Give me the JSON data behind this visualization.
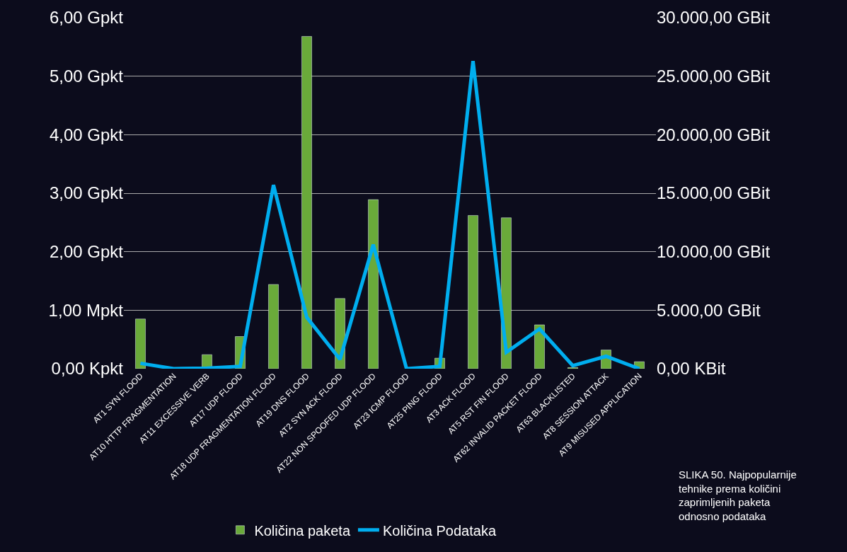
{
  "chart_data": {
    "type": "bar",
    "categories": [
      "AT1 SYN FLOOD",
      "AT10 HTTP FRAGMENTATION",
      "AT11 EXCESSIVE VERB",
      "AT17 UDP FLOOD",
      "AT18 UDP FRAGMENTATION FLOOD",
      "AT19 DNS FLOOD",
      "AT2 SYN ACK FLOOD",
      "AT22 NON SPOOFED UDP FLOOD",
      "AT23 ICMP FLOOD",
      "AT25 PING FLOOD",
      "AT3 ACK FLOOD",
      "AT5 RST FIN FLOOD",
      "AT62 INVALID PACKET FLOOD",
      "AT63 BLACKLISTED",
      "AT8 SESSION ATTACK",
      "AT9 MISUSED APPLICATION"
    ],
    "series": [
      {
        "name": "Količina paketa",
        "color": "#6aaa3a",
        "values": [
          0.85,
          null,
          0.24,
          0.55,
          1.44,
          5.68,
          1.2,
          2.89,
          null,
          0.18,
          2.62,
          2.58,
          0.75,
          0.02,
          0.32,
          0.12
        ]
      },
      {
        "name": "Količina Podataka",
        "type": "line",
        "axis": "y2",
        "color": "#00aeef",
        "values": [
          460,
          0,
          50,
          200,
          15700,
          4400,
          800,
          10600,
          0,
          200,
          26300,
          1400,
          3400,
          260,
          1060,
          0
        ]
      }
    ],
    "ylim": [
      0,
      6
    ],
    "yticks": [
      {
        "value": 0,
        "label": "0,00 Kpkt"
      },
      {
        "value": 1,
        "label": "1,00 Mpkt"
      },
      {
        "value": 2,
        "label": "2,00 Gpkt"
      },
      {
        "value": 3,
        "label": "3,00 Gpkt"
      },
      {
        "value": 4,
        "label": "4,00 Gpkt"
      },
      {
        "value": 5,
        "label": "5,00 Gpkt"
      },
      {
        "value": 6,
        "label": "6,00 Gpkt"
      }
    ],
    "y2lim": [
      0,
      30000
    ],
    "y2ticks": [
      {
        "value": 0,
        "label": "0,00 KBit"
      },
      {
        "value": 5000,
        "label": "5.000,00 GBit"
      },
      {
        "value": 10000,
        "label": "10.000,00 GBit"
      },
      {
        "value": 15000,
        "label": "15.000,00 GBit"
      },
      {
        "value": 20000,
        "label": "20.000,00 GBit"
      },
      {
        "value": 25000,
        "label": "25.000,00 GBit"
      },
      {
        "value": 30000,
        "label": "30.000,00 GBit"
      }
    ],
    "grid": "y",
    "legend": "bottom",
    "marker": "none",
    "line_style": "solid",
    "annotations": [
      "SLIKA 50. Najpopularnije tehnike prema količini zaprimljenih paketa odnosno podataka"
    ]
  }
}
